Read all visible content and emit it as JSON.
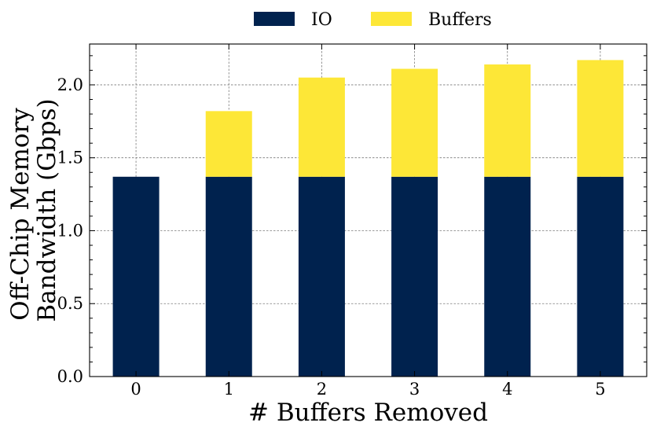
{
  "chart_data": {
    "type": "bar",
    "stacked": true,
    "categories": [
      "0",
      "1",
      "2",
      "3",
      "4",
      "5"
    ],
    "series": [
      {
        "name": "IO",
        "values": [
          1.37,
          1.37,
          1.37,
          1.37,
          1.37,
          1.37
        ],
        "color": "#00224e"
      },
      {
        "name": "Buffers",
        "values": [
          0.0,
          0.45,
          0.68,
          0.74,
          0.77,
          0.8
        ],
        "color": "#fde737"
      }
    ],
    "xlabel": "# Buffers Removed",
    "ylabel_lines": [
      "Off-Chip Memory",
      "Bandwidth (Gbps)"
    ],
    "ylim": [
      0,
      2.28
    ],
    "yticks": [
      "0.0",
      "0.5",
      "1.0",
      "1.5",
      "2.0"
    ],
    "ytick_values": [
      0,
      0.5,
      1.0,
      1.5,
      2.0
    ],
    "grid": true,
    "legend_placement": "top-center"
  }
}
